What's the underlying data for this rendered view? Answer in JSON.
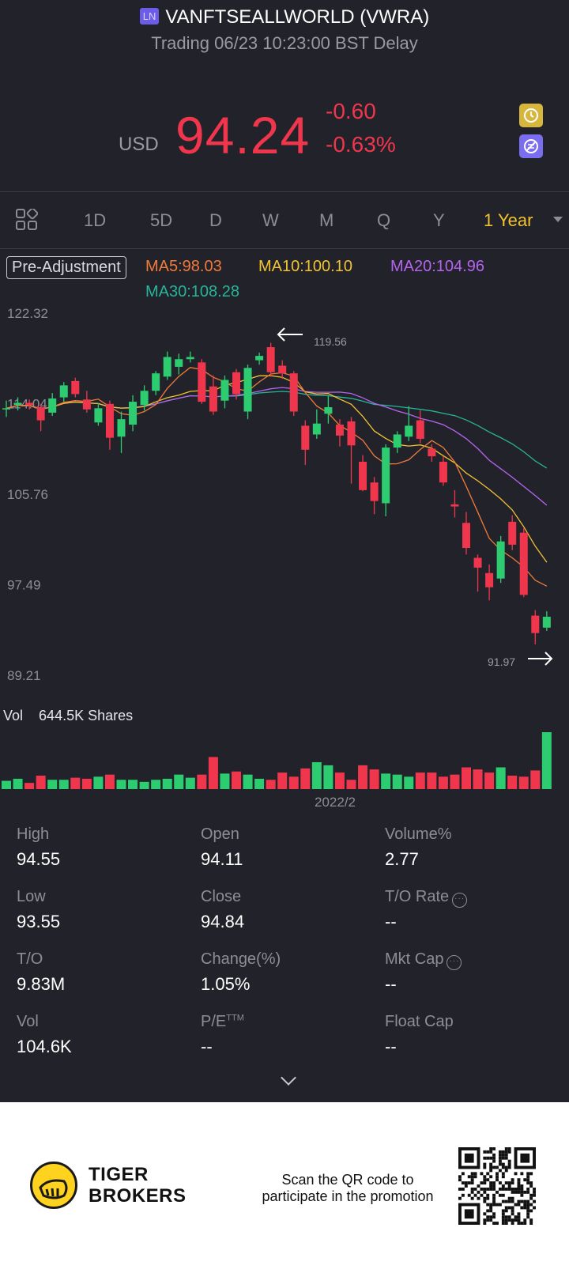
{
  "header": {
    "exchange_badge": "LN",
    "title": "VANFTSEALLWORLD (VWRA)",
    "subtitle": "Trading 06/23 10:23:00 BST Delay",
    "currency": "USD",
    "price": "94.24",
    "change": "-0.60",
    "change_pct": "-0.63%"
  },
  "tabs": [
    "1D",
    "5D",
    "D",
    "W",
    "M",
    "Q",
    "Y",
    "1 Year"
  ],
  "active_tab": "1 Year",
  "legend": {
    "pre_adjustment": "Pre-Adjustment",
    "ma5": "MA5:98.03",
    "ma10": "MA10:100.10",
    "ma20": "MA20:104.96",
    "ma30": "MA30:108.28"
  },
  "colors": {
    "up": "#2ecc71",
    "down": "#f0364c",
    "ma5": "#f07a3a",
    "ma10": "#f2c231",
    "ma20": "#b664f0",
    "ma30": "#27b59a",
    "accent": "#f2c231"
  },
  "chart_data": {
    "type": "candlestick",
    "y_ticks": [
      "122.32",
      "114.04",
      "105.76",
      "97.49",
      "89.21"
    ],
    "y_range": [
      89.21,
      122.32
    ],
    "max_marker": "119.56",
    "min_marker": "91.97",
    "x_label": "2022/2",
    "candles": [
      {
        "o": 113.6,
        "c": 113.6,
        "h": 114.3,
        "l": 112.8
      },
      {
        "o": 113.9,
        "c": 114.1,
        "h": 114.6,
        "l": 113.4
      },
      {
        "o": 114.1,
        "c": 113.9,
        "h": 114.4,
        "l": 113.5
      },
      {
        "o": 113.7,
        "c": 112.5,
        "h": 114.0,
        "l": 111.5
      },
      {
        "o": 113.2,
        "c": 114.5,
        "h": 115.0,
        "l": 112.9
      },
      {
        "o": 114.6,
        "c": 115.7,
        "h": 116.0,
        "l": 114.2
      },
      {
        "o": 116.1,
        "c": 114.9,
        "h": 116.4,
        "l": 114.6
      },
      {
        "o": 114.4,
        "c": 113.5,
        "h": 115.2,
        "l": 113.2
      },
      {
        "o": 112.3,
        "c": 113.6,
        "h": 114.1,
        "l": 112.0
      },
      {
        "o": 114.0,
        "c": 110.9,
        "h": 114.3,
        "l": 109.8
      },
      {
        "o": 111.0,
        "c": 112.6,
        "h": 113.3,
        "l": 109.5
      },
      {
        "o": 112.1,
        "c": 114.2,
        "h": 114.8,
        "l": 111.5
      },
      {
        "o": 113.9,
        "c": 115.2,
        "h": 115.7,
        "l": 113.4
      },
      {
        "o": 115.2,
        "c": 116.8,
        "h": 117.0,
        "l": 114.8
      },
      {
        "o": 116.5,
        "c": 118.3,
        "h": 118.8,
        "l": 116.2
      },
      {
        "o": 117.4,
        "c": 118.1,
        "h": 118.6,
        "l": 116.7
      },
      {
        "o": 118.1,
        "c": 118.3,
        "h": 118.8,
        "l": 117.8
      },
      {
        "o": 117.8,
        "c": 114.2,
        "h": 118.1,
        "l": 114.0
      },
      {
        "o": 115.6,
        "c": 113.3,
        "h": 116.6,
        "l": 113.0
      },
      {
        "o": 114.3,
        "c": 116.2,
        "h": 116.6,
        "l": 113.6
      },
      {
        "o": 116.9,
        "c": 114.9,
        "h": 117.2,
        "l": 114.4
      },
      {
        "o": 113.3,
        "c": 117.3,
        "h": 117.6,
        "l": 112.6
      },
      {
        "o": 118.0,
        "c": 118.4,
        "h": 118.7,
        "l": 117.6
      },
      {
        "o": 119.2,
        "c": 116.9,
        "h": 119.6,
        "l": 116.5
      },
      {
        "o": 117.5,
        "c": 116.8,
        "h": 118.0,
        "l": 116.3
      },
      {
        "o": 116.8,
        "c": 113.3,
        "h": 117.0,
        "l": 112.9
      },
      {
        "o": 112.0,
        "c": 109.8,
        "h": 112.5,
        "l": 108.4
      },
      {
        "o": 111.2,
        "c": 112.2,
        "h": 113.5,
        "l": 110.8
      },
      {
        "o": 113.1,
        "c": 113.7,
        "h": 114.8,
        "l": 112.2
      },
      {
        "o": 112.1,
        "c": 111.1,
        "h": 112.6,
        "l": 110.1
      },
      {
        "o": 112.4,
        "c": 110.2,
        "h": 112.8,
        "l": 106.7
      },
      {
        "o": 108.7,
        "c": 106.1,
        "h": 109.3,
        "l": 106.0
      },
      {
        "o": 106.8,
        "c": 105.1,
        "h": 107.3,
        "l": 103.9
      },
      {
        "o": 104.9,
        "c": 110.0,
        "h": 110.3,
        "l": 103.7
      },
      {
        "o": 110.0,
        "c": 111.2,
        "h": 111.5,
        "l": 109.5
      },
      {
        "o": 111.0,
        "c": 112.0,
        "h": 113.8,
        "l": 110.6
      },
      {
        "o": 112.5,
        "c": 110.8,
        "h": 113.4,
        "l": 110.4
      },
      {
        "o": 109.9,
        "c": 109.2,
        "h": 110.3,
        "l": 108.7
      },
      {
        "o": 108.7,
        "c": 106.8,
        "h": 109.2,
        "l": 106.5
      },
      {
        "o": 104.8,
        "c": 104.6,
        "h": 106.1,
        "l": 103.6
      },
      {
        "o": 103.1,
        "c": 100.8,
        "h": 104.1,
        "l": 100.2
      },
      {
        "o": 99.9,
        "c": 99.0,
        "h": 100.2,
        "l": 96.8
      },
      {
        "o": 98.5,
        "c": 97.2,
        "h": 99.3,
        "l": 96.0
      },
      {
        "o": 98.0,
        "c": 101.4,
        "h": 101.9,
        "l": 97.6
      },
      {
        "o": 103.2,
        "c": 101.1,
        "h": 103.8,
        "l": 100.6
      },
      {
        "o": 102.2,
        "c": 96.5,
        "h": 102.6,
        "l": 96.3
      },
      {
        "o": 94.6,
        "c": 93.0,
        "h": 95.1,
        "l": 91.97
      },
      {
        "o": 93.5,
        "c": 94.5,
        "h": 95.0,
        "l": 93.2
      }
    ],
    "volume_label": "Vol",
    "volume_value": "644.5K Shares",
    "volumes": [
      8,
      10,
      6,
      13,
      9,
      9,
      11,
      10,
      12,
      14,
      9,
      9,
      7,
      9,
      10,
      14,
      11,
      14,
      31,
      15,
      17,
      14,
      10,
      9,
      16,
      12,
      20,
      26,
      23,
      16,
      9,
      23,
      19,
      15,
      14,
      12,
      16,
      16,
      12,
      14,
      21,
      19,
      16,
      21,
      13,
      12,
      18,
      55
    ]
  },
  "stats": {
    "high_label": "High",
    "high": "94.55",
    "open_label": "Open",
    "open": "94.11",
    "volpct_label": "Volume%",
    "volpct": "2.77",
    "low_label": "Low",
    "low": "93.55",
    "close_label": "Close",
    "close": "94.84",
    "to_rate_label": "T/O Rate",
    "to_rate": "--",
    "to_label": "T/O",
    "to": "9.83M",
    "change_label": "Change(%)",
    "change": "1.05%",
    "mktcap_label": "Mkt Cap",
    "mktcap": "--",
    "vol_label": "Vol",
    "vol": "104.6K",
    "pe_label": "P/E",
    "pe_sup": "TTM",
    "pe": "--",
    "floatcap_label": "Float Cap",
    "floatcap": "--"
  },
  "footer": {
    "brand_line1": "TIGER",
    "brand_line2": "BROKERS",
    "promo_line1": "Scan the QR code to",
    "promo_line2": "participate in the promotion"
  }
}
